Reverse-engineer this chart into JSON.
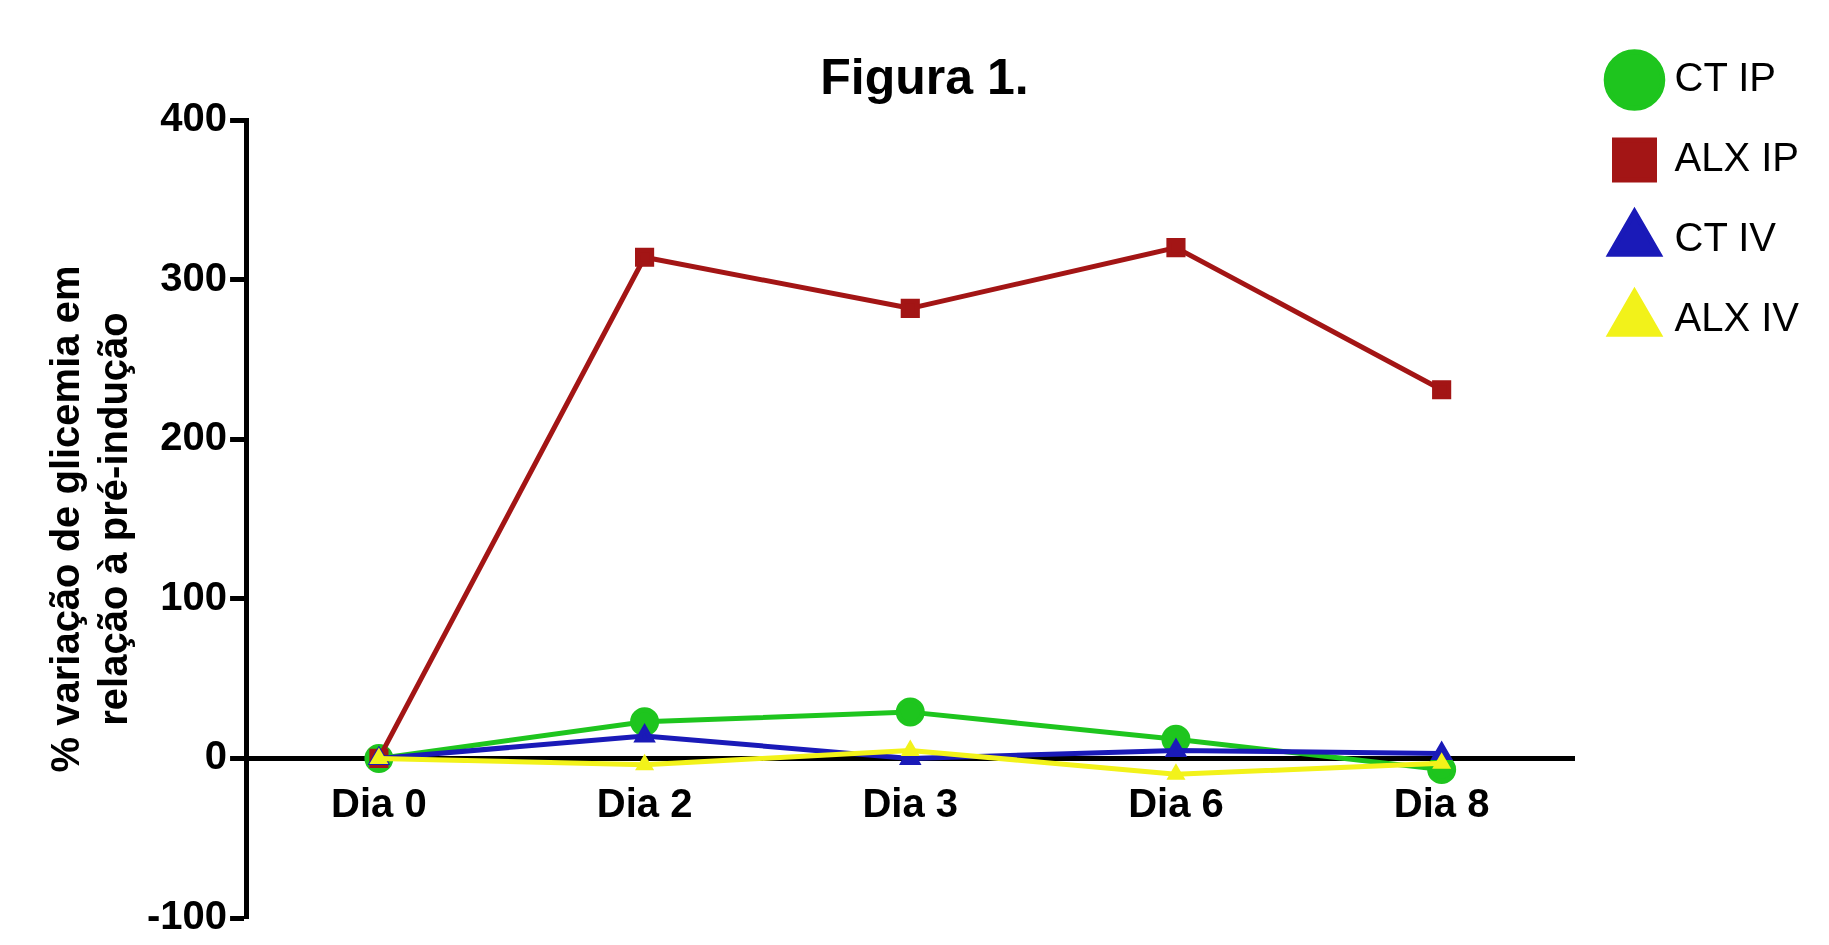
{
  "chart_data": {
    "type": "line",
    "title": "Figura 1.",
    "ylabel": "% variação de glicemia em\nrelação à pré-indução",
    "categories": [
      "Dia 0",
      "Dia 2",
      "Dia 3",
      "Dia 6",
      "Dia 8"
    ],
    "series": [
      {
        "name": "CT IP",
        "color": "#1ec51e",
        "marker": "circle",
        "values": [
          0,
          23,
          29,
          12,
          -7
        ]
      },
      {
        "name": "ALX IP",
        "color": "#a31515",
        "marker": "square",
        "values": [
          0,
          314,
          282,
          320,
          231
        ]
      },
      {
        "name": "CT IV",
        "color": "#1a1ab8",
        "marker": "triangle",
        "values": [
          0,
          14,
          0,
          5,
          3
        ]
      },
      {
        "name": "ALX IV",
        "color": "#f2f21a",
        "marker": "triangle",
        "values": [
          0,
          -4,
          5,
          -10,
          -3
        ]
      }
    ],
    "ylim": [
      -100,
      400
    ],
    "yticks": [
      -100,
      0,
      100,
      200,
      300,
      400
    ],
    "grid": false,
    "legend": "right",
    "line_style": "solid"
  }
}
